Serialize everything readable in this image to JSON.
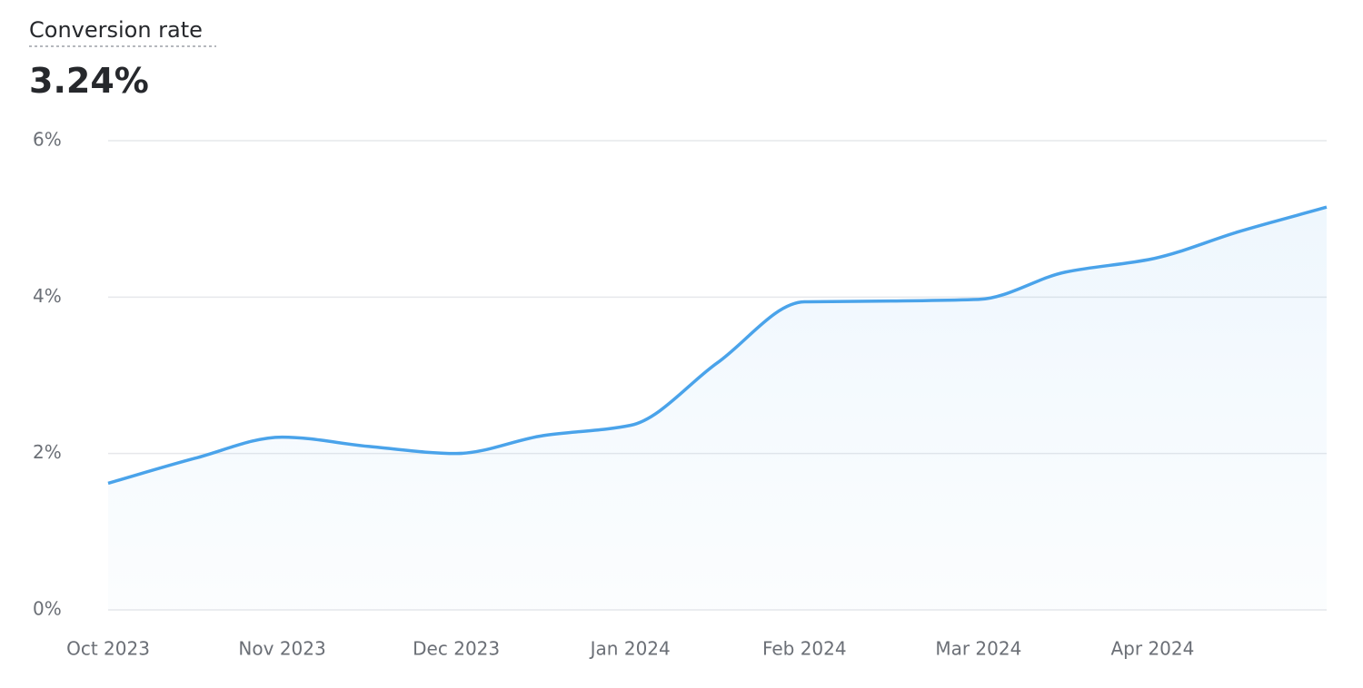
{
  "chart_data": {
    "type": "line",
    "title": "Conversion rate",
    "summary": "3.24%",
    "categories": [
      "Oct 2023",
      null,
      "Nov 2023",
      null,
      "Dec 2023",
      null,
      "Jan 2024",
      null,
      "Feb 2024",
      null,
      "Mar 2024",
      null,
      "Apr 2024",
      null,
      null
    ],
    "series": [
      {
        "name": "Conversion rate",
        "color": "#4aa3ea",
        "values": [
          1.62,
          1.94,
          2.21,
          2.09,
          2.0,
          2.23,
          2.36,
          3.16,
          3.94,
          3.95,
          3.97,
          4.32,
          4.49,
          4.84,
          5.15
        ]
      }
    ],
    "ylim": [
      0,
      6
    ],
    "yticks": [
      {
        "value": 0,
        "label": "0%"
      },
      {
        "value": 2,
        "label": "2%"
      },
      {
        "value": 4,
        "label": "4%"
      },
      {
        "value": 6,
        "label": "6%"
      }
    ],
    "grid": true
  }
}
